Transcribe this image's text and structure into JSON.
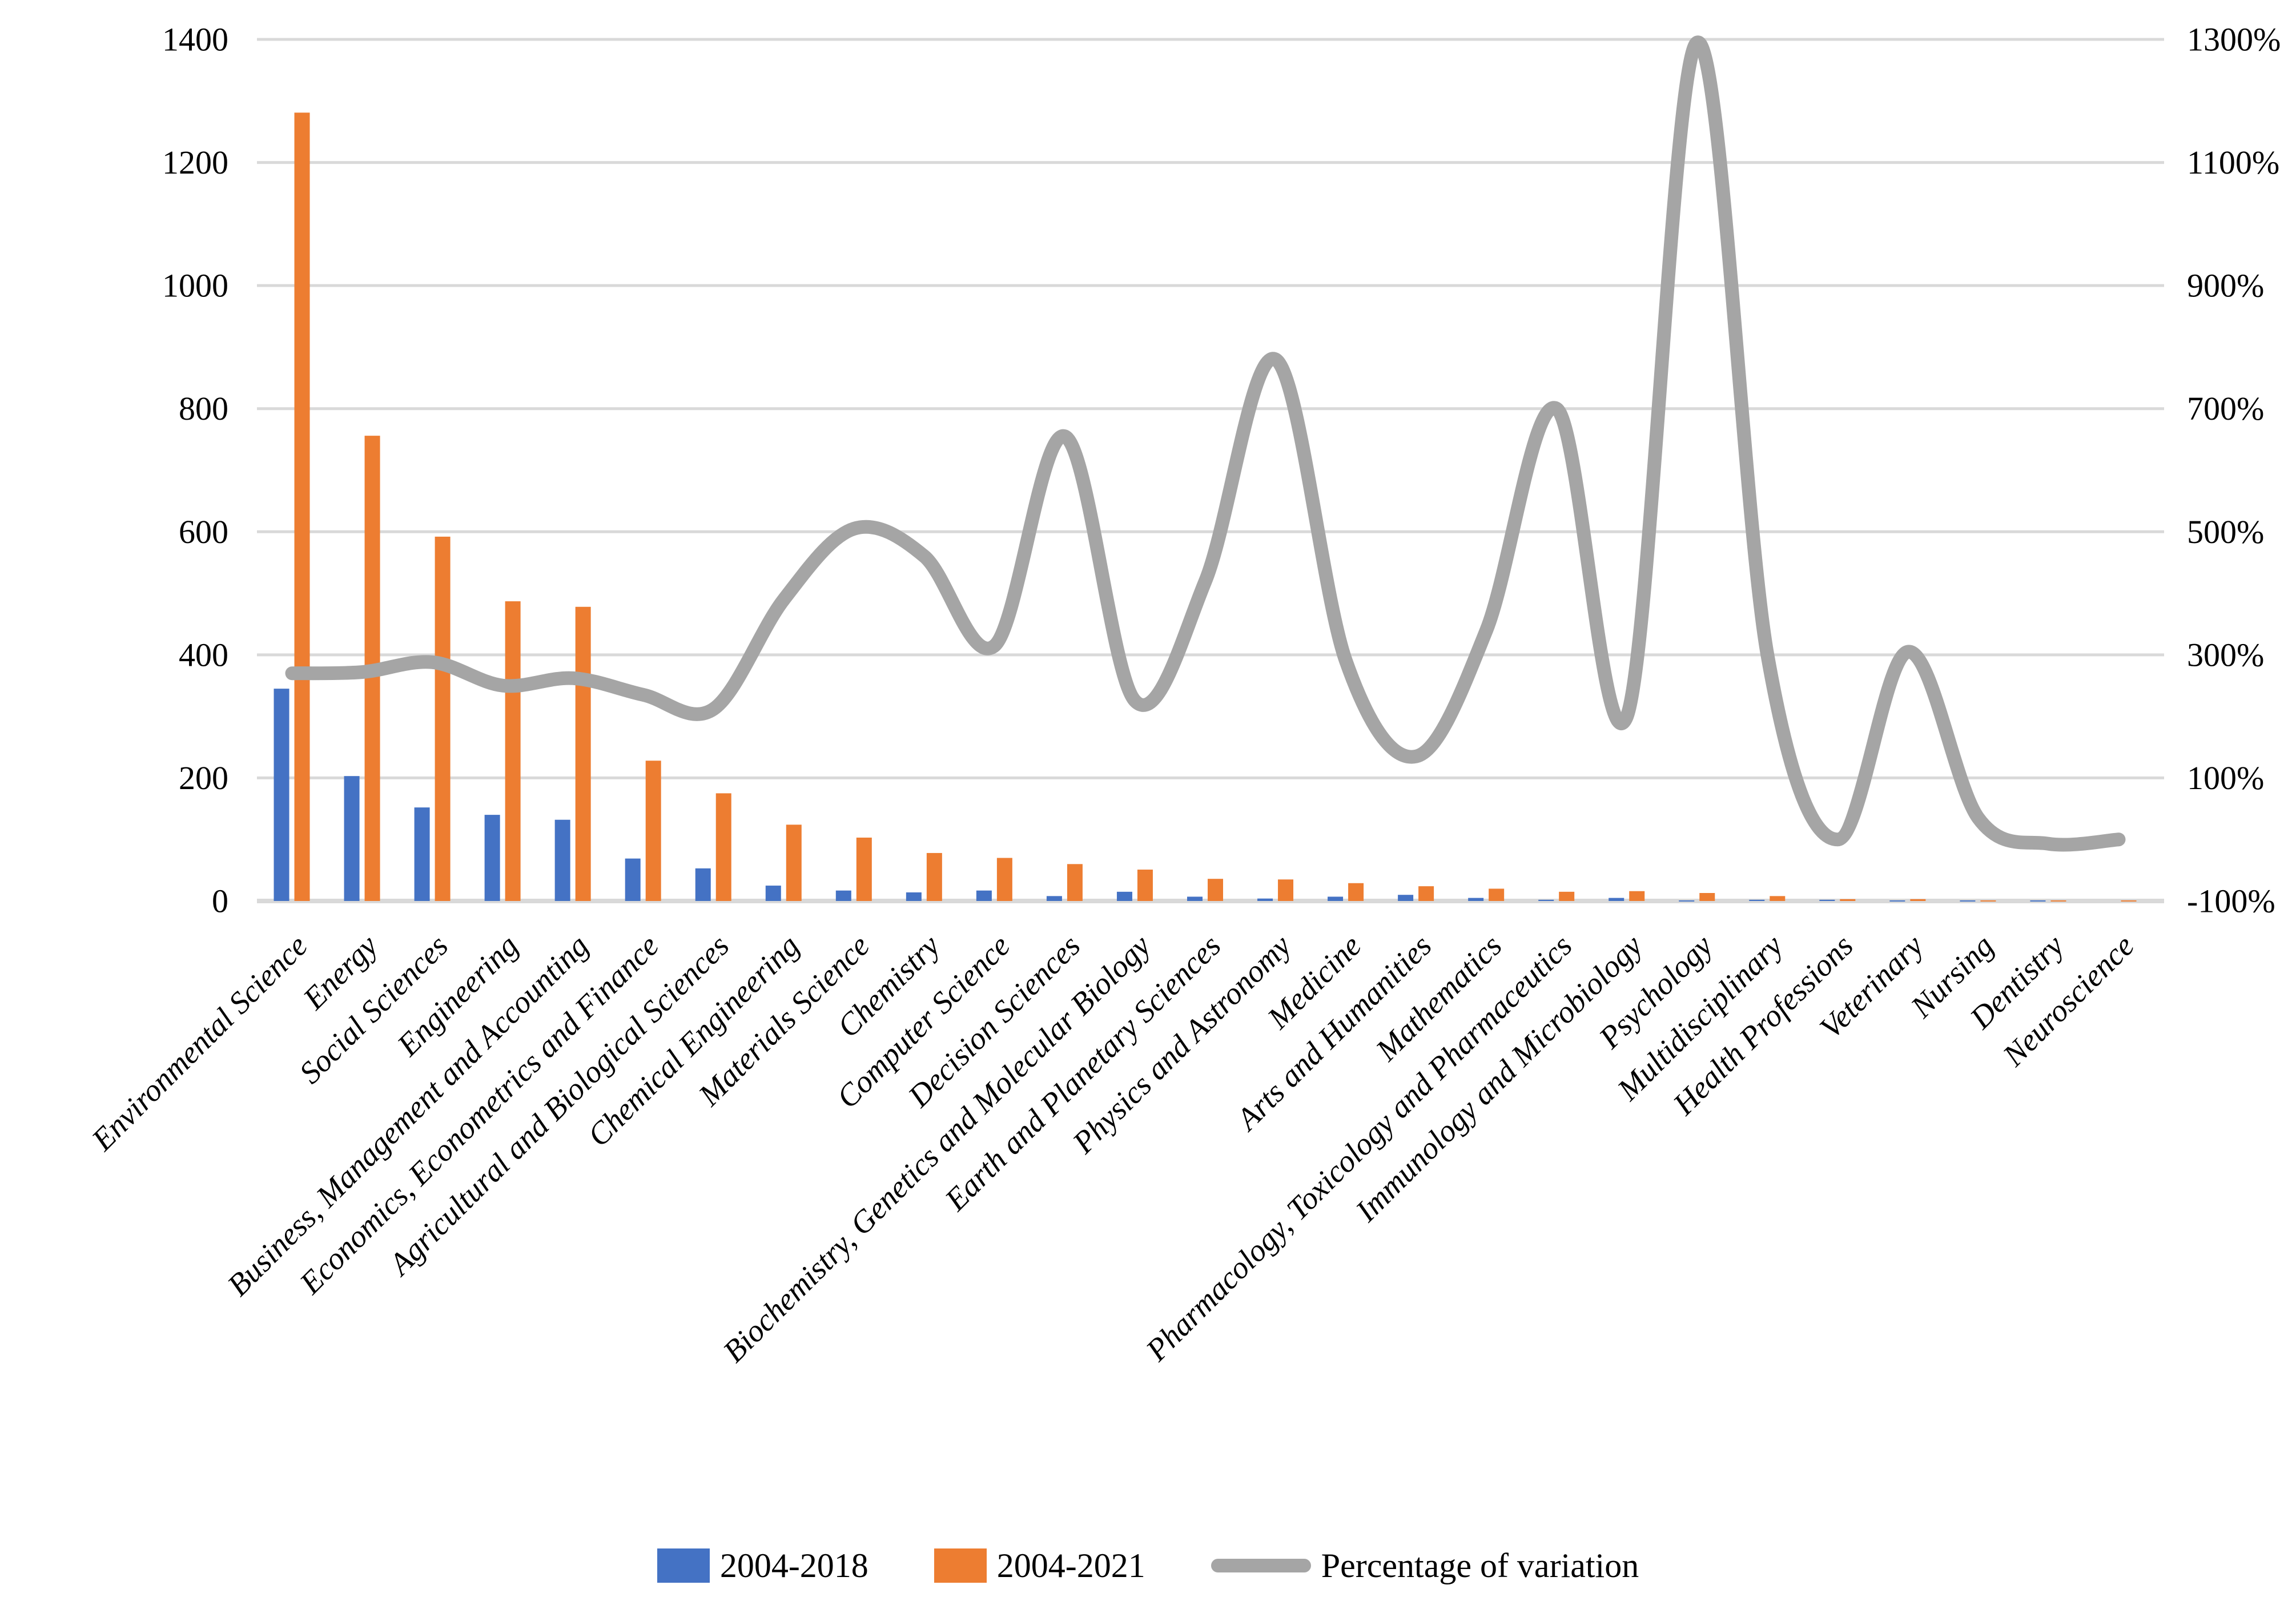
{
  "legend": {
    "items": [
      {
        "label": "2004-2018",
        "swatch": "square",
        "color": "#4472C4"
      },
      {
        "label": "2004-2021",
        "swatch": "square",
        "color": "#ED7D31"
      },
      {
        "label": "Percentage of variation",
        "swatch": "line",
        "color": "#A5A5A5"
      }
    ]
  },
  "chart_data": {
    "type": "bar",
    "subtype": "combo-bar-line",
    "title": "",
    "xlabel": "",
    "ylabel": "",
    "categories": [
      "Environmental Science",
      "Energy",
      "Social Sciences",
      "Engineering",
      "Business, Management and Accounting",
      "Economics, Econometrics and Finance",
      "Agricultural and Biological Sciences",
      "Chemical Engineering",
      "Materials Science",
      "Chemistry",
      "Computer Science",
      "Decision Sciences",
      "Biochemistry, Genetics and Molecular Biology",
      "Earth and Planetary Sciences",
      "Physics and Astronomy",
      "Medicine",
      "Arts and Humanities",
      "Mathematics",
      "Pharmacology, Toxicology and Pharmaceutics",
      "Immunology and Microbiology",
      "Psychology",
      "Multidisciplinary",
      "Health Professions",
      "Veterinary",
      "Nursing",
      "Dentistry",
      "Neuroscience"
    ],
    "series": [
      {
        "name": "2004-2018",
        "kind": "bar",
        "axis": "left",
        "color": "#4472C4",
        "values": [
          345,
          203,
          152,
          140,
          132,
          69,
          53,
          25,
          17,
          14,
          17,
          8,
          15,
          7,
          4,
          7,
          10,
          5,
          2,
          5,
          1,
          2,
          2,
          1,
          1,
          1,
          0
        ]
      },
      {
        "name": "2004-2021",
        "kind": "bar",
        "axis": "left",
        "color": "#ED7D31",
        "values": [
          1281,
          756,
          592,
          487,
          478,
          228,
          175,
          124,
          103,
          78,
          70,
          60,
          51,
          36,
          35,
          29,
          24,
          20,
          15,
          16,
          13,
          8,
          3,
          3,
          1,
          1,
          1
        ]
      },
      {
        "name": "Percentage of variation",
        "kind": "line",
        "axis": "right",
        "color": "#A5A5A5",
        "values": [
          270,
          272,
          288,
          250,
          262,
          235,
          212,
          390,
          505,
          460,
          315,
          655,
          225,
          420,
          780,
          290,
          135,
          340,
          700,
          200,
          1295,
          300,
          0,
          305,
          35,
          -7,
          0
        ]
      }
    ],
    "left_axis": {
      "min": 0,
      "max": 1400,
      "step": 200,
      "tick_labels": [
        "0",
        "200",
        "400",
        "600",
        "800",
        "1000",
        "1200",
        "1400"
      ]
    },
    "right_axis": {
      "min": -100,
      "max": 1300,
      "step": 200,
      "tick_labels": [
        "-100%",
        "100%",
        "300%",
        "500%",
        "700%",
        "900%",
        "1100%",
        "1300%"
      ]
    },
    "grid": true,
    "legend_position": "bottom",
    "colors": {
      "grid": "#D9D9D9",
      "axis_text": "#000000"
    }
  }
}
